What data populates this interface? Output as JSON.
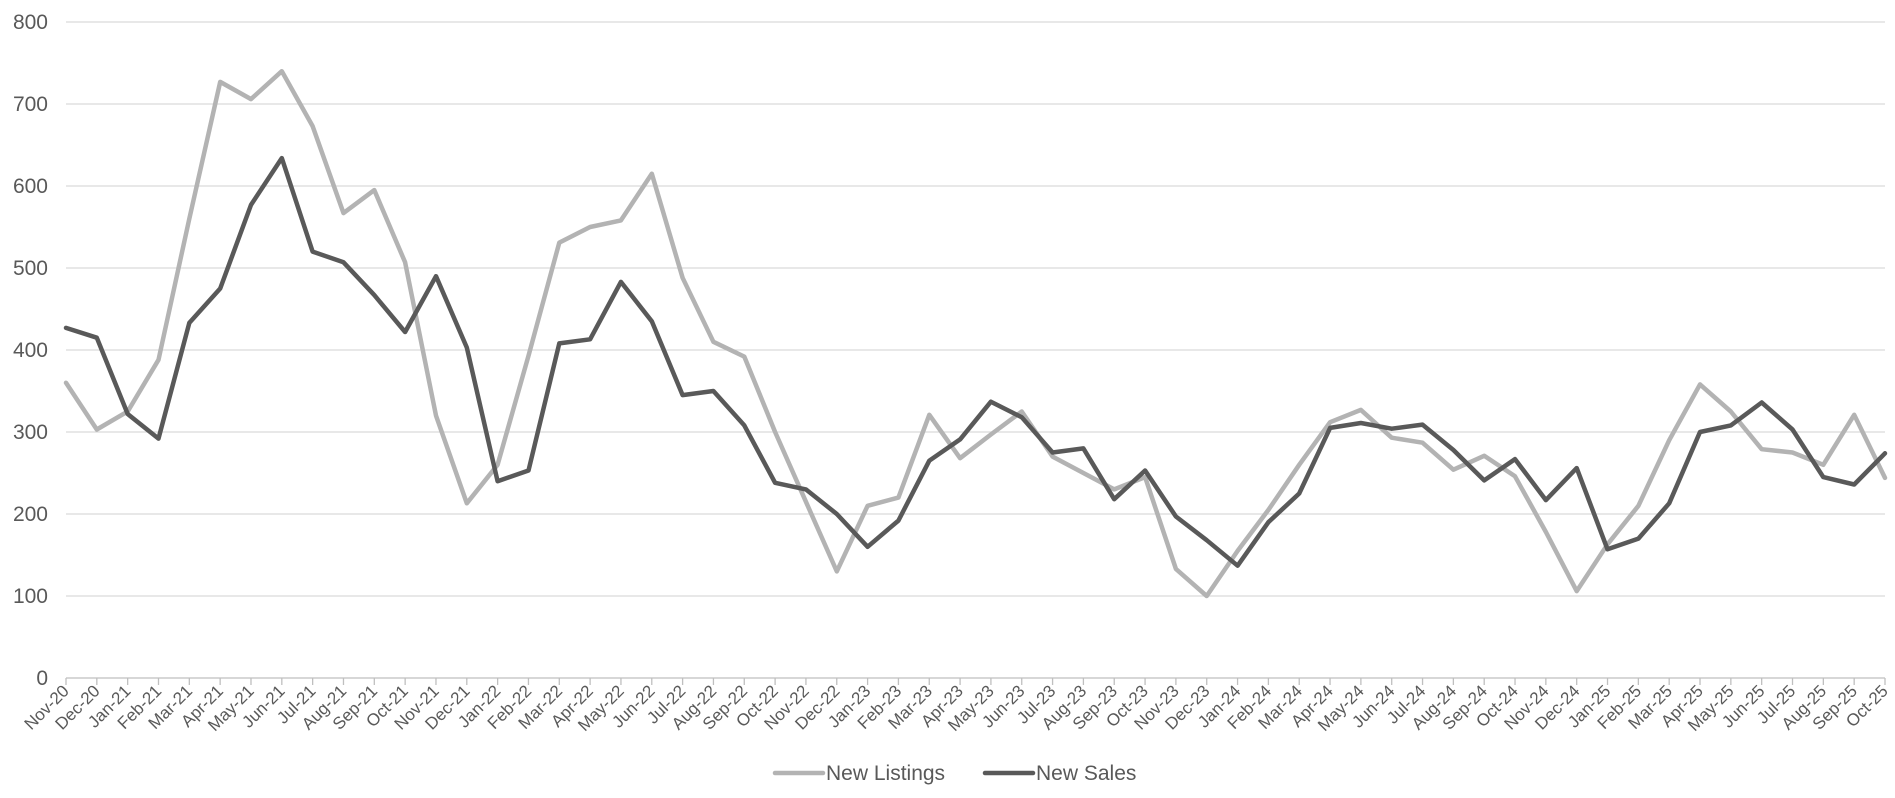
{
  "chart_data": {
    "type": "line",
    "title": "",
    "xlabel": "",
    "ylabel": "",
    "ylim": [
      0,
      800
    ],
    "yticks": [
      0,
      100,
      200,
      300,
      400,
      500,
      600,
      700,
      800
    ],
    "grid": "horizontal",
    "legend_position": "bottom",
    "categories": [
      "Nov-20",
      "Dec-20",
      "Jan-21",
      "Feb-21",
      "Mar-21",
      "Apr-21",
      "May-21",
      "Jun-21",
      "Jul-21",
      "Aug-21",
      "Sep-21",
      "Oct-21",
      "Nov-21",
      "Dec-21",
      "Jan-22",
      "Feb-22",
      "Mar-22",
      "Apr-22",
      "May-22",
      "Jun-22",
      "Jul-22",
      "Aug-22",
      "Sep-22",
      "Oct-22",
      "Nov-22",
      "Dec-22",
      "Jan-23",
      "Feb-23",
      "Mar-23",
      "Apr-23",
      "May-23",
      "Jun-23",
      "Jul-23",
      "Aug-23",
      "Sep-23",
      "Oct-23",
      "Nov-23",
      "Dec-23",
      "Jan-24",
      "Feb-24",
      "Mar-24",
      "Apr-24",
      "May-24",
      "Jun-24",
      "Jul-24",
      "Aug-24",
      "Sep-24",
      "Oct-24",
      "Nov-24",
      "Dec-24",
      "Jan-25",
      "Feb-25",
      "Mar-25",
      "Apr-25",
      "May-25",
      "Jun-25",
      "Jul-25",
      "Aug-25",
      "Sep-25",
      "Oct-25"
    ],
    "series": [
      {
        "name": "New Listings",
        "color": "#b3b3b3",
        "values": [
          360,
          303,
          325,
          388,
          560,
          727,
          706,
          740,
          673,
          567,
          595,
          507,
          320,
          213,
          260,
          393,
          531,
          550,
          558,
          615,
          488,
          410,
          392,
          300,
          215,
          130,
          210,
          220,
          321,
          268,
          297,
          325,
          270,
          250,
          230,
          245,
          133,
          100,
          155,
          205,
          260,
          312,
          327,
          293,
          287,
          254,
          271,
          246,
          178,
          106,
          163,
          210,
          290,
          358,
          325,
          279,
          275,
          260,
          321,
          244
        ]
      },
      {
        "name": "New Sales",
        "color": "#595959",
        "values": [
          427,
          415,
          322,
          292,
          433,
          475,
          577,
          634,
          520,
          507,
          467,
          422,
          490,
          403,
          240,
          253,
          408,
          413,
          483,
          435,
          345,
          350,
          308,
          238,
          230,
          200,
          160,
          192,
          265,
          291,
          337,
          318,
          275,
          280,
          218,
          253,
          197,
          168,
          137,
          190,
          225,
          305,
          311,
          304,
          309,
          278,
          241,
          267,
          217,
          256,
          157,
          170,
          213,
          300,
          308,
          336,
          303,
          245,
          236,
          274
        ]
      }
    ]
  }
}
